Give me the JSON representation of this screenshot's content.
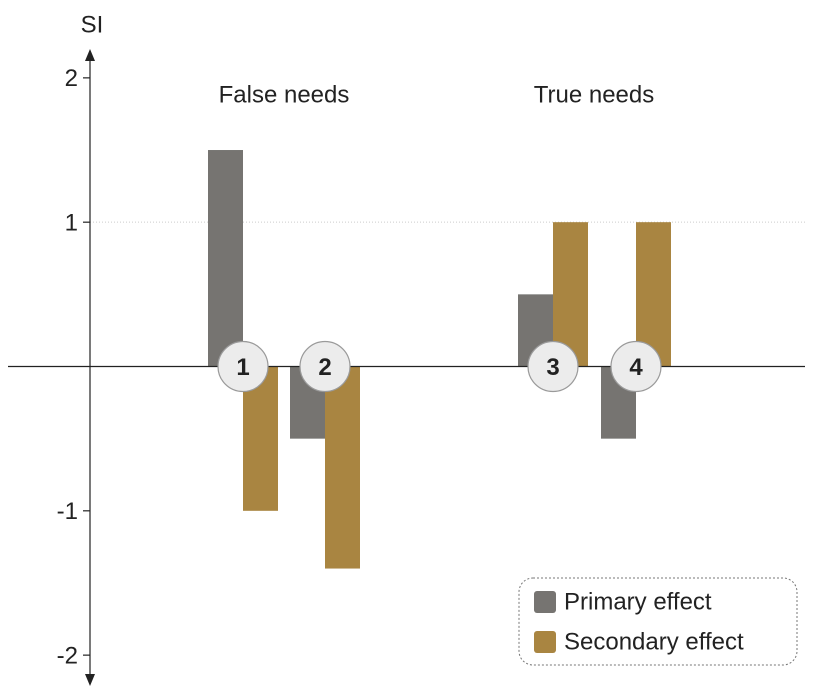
{
  "chart_data": {
    "type": "bar",
    "y_label": "SI",
    "annotations": [
      "False needs",
      "True needs"
    ],
    "categories": [
      "1",
      "2",
      "3",
      "4"
    ],
    "series": [
      {
        "name": "Primary effect",
        "color": "#767471",
        "values": [
          1.5,
          -0.5,
          0.5,
          -0.5
        ]
      },
      {
        "name": "Secondary effect",
        "color": "#a98541",
        "values": [
          -1,
          -1.4,
          1,
          1
        ]
      }
    ],
    "ylim": [
      -2.2,
      2.2
    ],
    "yticks": [
      -2,
      -1,
      1,
      2
    ],
    "grid_lines": [
      1
    ],
    "legend": "lower right"
  }
}
